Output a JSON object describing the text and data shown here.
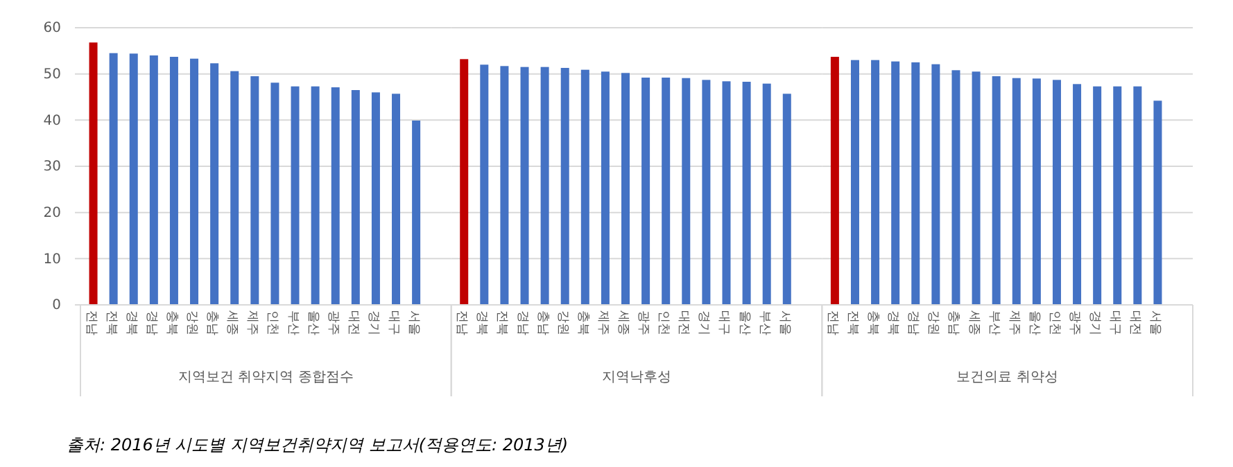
{
  "chart_data": [
    {
      "type": "bar",
      "xlabel": "지역보건 취약지역 종합점수",
      "categories": [
        "전남",
        "전북",
        "경북",
        "경남",
        "충북",
        "강원",
        "충남",
        "세종",
        "제주",
        "인천",
        "부산",
        "울산",
        "광주",
        "대전",
        "경기",
        "대구",
        "서울"
      ],
      "values": [
        56.8,
        54.5,
        54.4,
        54.0,
        53.7,
        53.3,
        52.3,
        50.6,
        49.5,
        48.1,
        47.3,
        47.3,
        47.1,
        46.5,
        46.0,
        45.7,
        39.9
      ],
      "colors": [
        "#c00000",
        "#4472c4",
        "#4472c4",
        "#4472c4",
        "#4472c4",
        "#4472c4",
        "#4472c4",
        "#4472c4",
        "#4472c4",
        "#4472c4",
        "#4472c4",
        "#4472c4",
        "#4472c4",
        "#4472c4",
        "#4472c4",
        "#4472c4",
        "#4472c4"
      ],
      "ylim": [
        0,
        60
      ],
      "yticks": [
        0,
        10,
        20,
        30,
        40,
        50,
        60
      ],
      "grid": "y",
      "annotations": [
        "출처: 2016년 시도별 지역보건취약지역 보고서(적용연도: 2013년)"
      ]
    },
    {
      "type": "bar",
      "xlabel": "지역낙후성",
      "categories": [
        "전남",
        "경북",
        "전북",
        "경남",
        "충남",
        "강원",
        "충북",
        "제주",
        "세종",
        "광주",
        "인천",
        "대전",
        "경기",
        "대구",
        "울산",
        "부산",
        "서울"
      ],
      "values": [
        53.2,
        52.0,
        51.7,
        51.5,
        51.5,
        51.3,
        50.9,
        50.5,
        50.2,
        49.2,
        49.2,
        49.1,
        48.7,
        48.4,
        48.3,
        47.9,
        45.7
      ],
      "colors": [
        "#c00000",
        "#4472c4",
        "#4472c4",
        "#4472c4",
        "#4472c4",
        "#4472c4",
        "#4472c4",
        "#4472c4",
        "#4472c4",
        "#4472c4",
        "#4472c4",
        "#4472c4",
        "#4472c4",
        "#4472c4",
        "#4472c4",
        "#4472c4",
        "#4472c4"
      ],
      "ylim": [
        0,
        60
      ],
      "yticks": [
        0,
        10,
        20,
        30,
        40,
        50,
        60
      ],
      "grid": "y",
      "tick_labels": "x"
    },
    {
      "type": "bar",
      "xlabel": "보건의료 취약성",
      "categories": [
        "전남",
        "전북",
        "충북",
        "경북",
        "경남",
        "강원",
        "충남",
        "세종",
        "부산",
        "제주",
        "울산",
        "인천",
        "광주",
        "경기",
        "대구",
        "대전",
        "서울"
      ],
      "values": [
        53.7,
        53.0,
        53.0,
        52.7,
        52.5,
        52.1,
        50.8,
        50.5,
        49.5,
        49.1,
        49.0,
        48.7,
        47.8,
        47.3,
        47.3,
        47.3,
        44.2
      ],
      "colors": [
        "#c00000",
        "#4472c4",
        "#4472c4",
        "#4472c4",
        "#4472c4",
        "#4472c4",
        "#4472c4",
        "#4472c4",
        "#4472c4",
        "#4472c4",
        "#4472c4",
        "#4472c4",
        "#4472c4",
        "#4472c4",
        "#4472c4",
        "#4472c4",
        "#4472c4"
      ],
      "ylim": [
        0,
        60
      ],
      "yticks": [
        0,
        10,
        20,
        30,
        40,
        50,
        60
      ],
      "grid": "y",
      "tick_labels": "x"
    }
  ]
}
